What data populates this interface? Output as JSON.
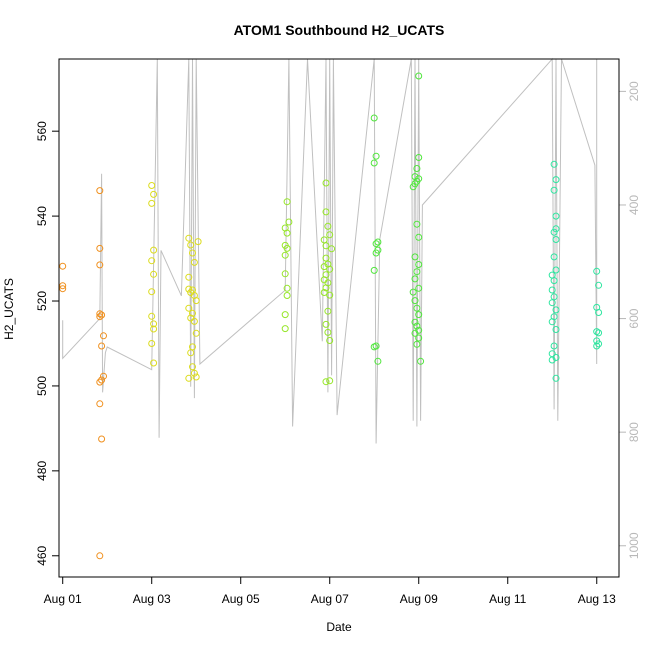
{
  "chart_data": {
    "type": "scatter",
    "title": "ATOM1 Southbound H2_UCATS",
    "xlabel": "Date",
    "ylabel": "H2_UCATS",
    "xlim": [
      "2016-07-31T22:00",
      "2016-08-13T12:00"
    ],
    "ylim": [
      455,
      577
    ],
    "x_ticks": [
      {
        "date": "2016-08-01",
        "label": "Aug 01"
      },
      {
        "date": "2016-08-03",
        "label": "Aug 03"
      },
      {
        "date": "2016-08-05",
        "label": "Aug 05"
      },
      {
        "date": "2016-08-07",
        "label": "Aug 07"
      },
      {
        "date": "2016-08-09",
        "label": "Aug 09"
      },
      {
        "date": "2016-08-11",
        "label": "Aug 11"
      },
      {
        "date": "2016-08-13",
        "label": "Aug 13"
      }
    ],
    "y_ticks": [
      460,
      480,
      500,
      520,
      540,
      560
    ],
    "right_axis": {
      "description": "pressure, inverted",
      "range": [
        1055,
        143
      ],
      "ticks": [
        200,
        400,
        600,
        800,
        1000
      ],
      "color": "#b8b8b8"
    },
    "profile_line": {
      "color": "#c0c0c0",
      "points": [
        [
          "2016-08-01T00:00",
          603
        ],
        [
          "2016-08-01T00:00",
          670
        ],
        [
          "2016-08-01T20:00",
          600
        ],
        [
          "2016-08-01T21:00",
          345
        ],
        [
          "2016-08-01T21:30",
          730
        ],
        [
          "2016-08-01T23:00",
          660
        ],
        [
          "2016-08-02T00:00",
          650
        ],
        [
          "2016-08-03T00:00",
          690
        ],
        [
          "2016-08-03T03:00",
          130
        ],
        [
          "2016-08-03T04:00",
          810
        ],
        [
          "2016-08-03T05:00",
          480
        ],
        [
          "2016-08-03T16:00",
          560
        ],
        [
          "2016-08-03T20:00",
          130
        ],
        [
          "2016-08-03T21:00",
          720
        ],
        [
          "2016-08-03T22:00",
          130
        ],
        [
          "2016-08-03T23:00",
          740
        ],
        [
          "2016-08-04T00:00",
          130
        ],
        [
          "2016-08-04T02:00",
          680
        ],
        [
          "2016-08-06T00:00",
          550
        ],
        [
          "2016-08-06T02:00",
          130
        ],
        [
          "2016-08-06T04:00",
          790
        ],
        [
          "2016-08-06T12:00",
          130
        ],
        [
          "2016-08-06T20:00",
          640
        ],
        [
          "2016-08-06T22:00",
          130
        ],
        [
          "2016-08-06T23:00",
          730
        ],
        [
          "2016-08-07T00:00",
          130
        ],
        [
          "2016-08-07T01:00",
          700
        ],
        [
          "2016-08-07T02:00",
          130
        ],
        [
          "2016-08-07T04:00",
          770
        ],
        [
          "2016-08-08T00:00",
          130
        ],
        [
          "2016-08-08T01:00",
          820
        ],
        [
          "2016-08-08T03:00",
          460
        ],
        [
          "2016-08-08T20:00",
          130
        ],
        [
          "2016-08-08T21:00",
          780
        ],
        [
          "2016-08-08T22:00",
          130
        ],
        [
          "2016-08-08T23:00",
          790
        ],
        [
          "2016-08-09T00:00",
          130
        ],
        [
          "2016-08-09T01:00",
          780
        ],
        [
          "2016-08-09T02:00",
          400
        ],
        [
          "2016-08-12T00:00",
          130
        ],
        [
          "2016-08-12T01:00",
          760
        ],
        [
          "2016-08-12T02:00",
          130
        ],
        [
          "2016-08-12T03:00",
          780
        ],
        [
          "2016-08-12T05:00",
          130
        ],
        [
          "2016-08-12T23:00",
          330
        ],
        [
          "2016-08-13T00:00",
          680
        ],
        [
          "2016-08-13T00:00",
          130
        ]
      ]
    },
    "series": [
      {
        "color": "#f0901e",
        "points": [
          [
            "2016-08-01T00:00",
            528.2
          ],
          [
            "2016-08-01T00:00",
            523.6
          ],
          [
            "2016-08-01T00:00",
            522.9
          ],
          [
            "2016-08-01T20:00",
            546.0
          ],
          [
            "2016-08-01T20:00",
            532.4
          ],
          [
            "2016-08-01T20:00",
            528.5
          ],
          [
            "2016-08-01T20:00",
            517.0
          ],
          [
            "2016-08-01T20:00",
            516.3
          ],
          [
            "2016-08-01T21:00",
            516.7
          ],
          [
            "2016-08-01T21:00",
            509.4
          ],
          [
            "2016-08-01T22:00",
            511.8
          ],
          [
            "2016-08-01T22:00",
            502.3
          ],
          [
            "2016-08-01T20:00",
            500.9
          ],
          [
            "2016-08-01T21:00",
            501.4
          ],
          [
            "2016-08-01T20:00",
            495.8
          ],
          [
            "2016-08-01T21:00",
            487.5
          ],
          [
            "2016-08-01T20:00",
            460.0
          ]
        ]
      },
      {
        "color": "#dcdc1e",
        "points": [
          [
            "2016-08-03T00:00",
            547.2
          ],
          [
            "2016-08-03T01:00",
            545.1
          ],
          [
            "2016-08-03T00:00",
            543.0
          ],
          [
            "2016-08-03T01:00",
            532.0
          ],
          [
            "2016-08-03T00:00",
            529.5
          ],
          [
            "2016-08-03T01:00",
            526.3
          ],
          [
            "2016-08-03T00:00",
            522.2
          ],
          [
            "2016-08-03T00:00",
            516.4
          ],
          [
            "2016-08-03T01:00",
            514.6
          ],
          [
            "2016-08-03T01:00",
            513.4
          ],
          [
            "2016-08-03T00:00",
            510.0
          ],
          [
            "2016-08-03T01:00",
            505.4
          ],
          [
            "2016-08-03T20:00",
            534.8
          ],
          [
            "2016-08-03T21:00",
            533.2
          ],
          [
            "2016-08-03T22:00",
            531.3
          ],
          [
            "2016-08-03T23:00",
            529.1
          ],
          [
            "2016-08-03T20:00",
            525.6
          ],
          [
            "2016-08-03T22:00",
            522.6
          ],
          [
            "2016-08-03T21:00",
            522.0
          ],
          [
            "2016-08-03T23:00",
            521.3
          ],
          [
            "2016-08-04T00:00",
            520.1
          ],
          [
            "2016-08-03T20:00",
            518.3
          ],
          [
            "2016-08-03T22:00",
            517.1
          ],
          [
            "2016-08-03T21:00",
            516.0
          ],
          [
            "2016-08-03T23:00",
            515.2
          ],
          [
            "2016-08-04T00:00",
            512.4
          ],
          [
            "2016-08-03T22:00",
            509.2
          ],
          [
            "2016-08-03T21:00",
            507.8
          ],
          [
            "2016-08-03T22:00",
            504.5
          ],
          [
            "2016-08-03T23:00",
            503.0
          ],
          [
            "2016-08-04T00:00",
            502.1
          ],
          [
            "2016-08-03T20:00",
            501.8
          ],
          [
            "2016-08-03T20:00",
            522.8
          ],
          [
            "2016-08-04T01:00",
            534.0
          ]
        ]
      },
      {
        "color": "#96e628",
        "points": [
          [
            "2016-08-06T01:00",
            543.4
          ],
          [
            "2016-08-06T02:00",
            538.6
          ],
          [
            "2016-08-06T00:00",
            537.2
          ],
          [
            "2016-08-06T01:00",
            536.0
          ],
          [
            "2016-08-06T00:00",
            533.1
          ],
          [
            "2016-08-06T01:00",
            532.4
          ],
          [
            "2016-08-06T00:00",
            530.8
          ],
          [
            "2016-08-06T00:00",
            526.4
          ],
          [
            "2016-08-06T01:00",
            523.0
          ],
          [
            "2016-08-06T01:00",
            521.3
          ],
          [
            "2016-08-06T00:00",
            516.8
          ],
          [
            "2016-08-06T00:00",
            513.5
          ],
          [
            "2016-08-06T22:00",
            547.8
          ],
          [
            "2016-08-06T22:00",
            541.0
          ],
          [
            "2016-08-06T23:00",
            537.6
          ],
          [
            "2016-08-07T00:00",
            535.6
          ],
          [
            "2016-08-06T21:00",
            534.4
          ],
          [
            "2016-08-06T22:00",
            533.0
          ],
          [
            "2016-08-07T01:00",
            532.3
          ],
          [
            "2016-08-06T22:00",
            530.1
          ],
          [
            "2016-08-06T23:00",
            528.7
          ],
          [
            "2016-08-06T21:00",
            528.1
          ],
          [
            "2016-08-07T00:00",
            527.5
          ],
          [
            "2016-08-06T22:00",
            526.2
          ],
          [
            "2016-08-06T23:00",
            524.3
          ],
          [
            "2016-08-06T22:00",
            523.1
          ],
          [
            "2016-08-06T21:00",
            522.0
          ],
          [
            "2016-08-07T00:00",
            521.4
          ],
          [
            "2016-08-06T23:00",
            517.6
          ],
          [
            "2016-08-06T22:00",
            514.5
          ],
          [
            "2016-08-06T23:00",
            512.6
          ],
          [
            "2016-08-07T00:00",
            510.7
          ],
          [
            "2016-08-06T22:00",
            501.0
          ],
          [
            "2016-08-07T00:00",
            501.2
          ],
          [
            "2016-08-06T21:00",
            525.0
          ]
        ]
      },
      {
        "color": "#50e63c",
        "points": [
          [
            "2016-08-08T00:00",
            563.1
          ],
          [
            "2016-08-08T01:00",
            554.1
          ],
          [
            "2016-08-08T00:00",
            552.5
          ],
          [
            "2016-08-08T02:00",
            533.9
          ],
          [
            "2016-08-08T01:00",
            533.5
          ],
          [
            "2016-08-08T02:00",
            532.0
          ],
          [
            "2016-08-08T01:00",
            531.3
          ],
          [
            "2016-08-08T00:00",
            527.2
          ],
          [
            "2016-08-08T00:00",
            509.2
          ],
          [
            "2016-08-08T01:00",
            509.4
          ],
          [
            "2016-08-08T02:00",
            505.8
          ],
          [
            "2016-08-09T00:00",
            573.0
          ],
          [
            "2016-08-09T00:00",
            553.8
          ],
          [
            "2016-08-08T23:00",
            551.2
          ],
          [
            "2016-08-08T22:00",
            549.3
          ],
          [
            "2016-08-09T00:00",
            548.8
          ],
          [
            "2016-08-08T23:00",
            548.2
          ],
          [
            "2016-08-08T22:00",
            547.6
          ],
          [
            "2016-08-08T21:00",
            546.9
          ],
          [
            "2016-08-08T23:00",
            538.1
          ],
          [
            "2016-08-09T00:00",
            535.0
          ],
          [
            "2016-08-08T22:00",
            530.4
          ],
          [
            "2016-08-09T00:00",
            528.6
          ],
          [
            "2016-08-08T23:00",
            526.9
          ],
          [
            "2016-08-08T22:00",
            525.2
          ],
          [
            "2016-08-09T00:00",
            523.0
          ],
          [
            "2016-08-08T21:00",
            522.1
          ],
          [
            "2016-08-08T22:00",
            520.1
          ],
          [
            "2016-08-08T23:00",
            518.3
          ],
          [
            "2016-08-09T00:00",
            516.8
          ],
          [
            "2016-08-08T22:00",
            515.0
          ],
          [
            "2016-08-08T23:00",
            514.1
          ],
          [
            "2016-08-09T00:00",
            513.1
          ],
          [
            "2016-08-08T22:00",
            512.4
          ],
          [
            "2016-08-09T00:00",
            511.3
          ],
          [
            "2016-08-08T23:00",
            509.8
          ],
          [
            "2016-08-09T01:00",
            505.8
          ]
        ]
      },
      {
        "color": "#2ee6a0",
        "points": [
          [
            "2016-08-12T01:00",
            552.2
          ],
          [
            "2016-08-12T02:00",
            548.6
          ],
          [
            "2016-08-12T01:00",
            546.1
          ],
          [
            "2016-08-12T02:00",
            540.0
          ],
          [
            "2016-08-12T02:00",
            537.0
          ],
          [
            "2016-08-12T01:00",
            536.2
          ],
          [
            "2016-08-12T02:00",
            534.5
          ],
          [
            "2016-08-12T01:00",
            530.4
          ],
          [
            "2016-08-12T02:00",
            527.3
          ],
          [
            "2016-08-12T00:00",
            526.1
          ],
          [
            "2016-08-12T01:00",
            524.8
          ],
          [
            "2016-08-12T00:00",
            522.6
          ],
          [
            "2016-08-12T01:00",
            521.0
          ],
          [
            "2016-08-12T00:00",
            519.6
          ],
          [
            "2016-08-12T02:00",
            517.9
          ],
          [
            "2016-08-12T01:00",
            516.3
          ],
          [
            "2016-08-12T00:00",
            515.1
          ],
          [
            "2016-08-12T02:00",
            513.3
          ],
          [
            "2016-08-12T01:00",
            509.4
          ],
          [
            "2016-08-12T00:00",
            507.6
          ],
          [
            "2016-08-12T02:00",
            506.7
          ],
          [
            "2016-08-12T00:00",
            506.1
          ],
          [
            "2016-08-12T02:00",
            501.8
          ],
          [
            "2016-08-13T00:00",
            527.0
          ],
          [
            "2016-08-13T01:00",
            523.7
          ],
          [
            "2016-08-13T00:00",
            518.5
          ],
          [
            "2016-08-13T01:00",
            517.3
          ],
          [
            "2016-08-13T00:00",
            512.8
          ],
          [
            "2016-08-13T01:00",
            512.5
          ],
          [
            "2016-08-13T00:00",
            510.6
          ],
          [
            "2016-08-13T01:00",
            509.9
          ],
          [
            "2016-08-13T00:00",
            509.4
          ]
        ]
      }
    ]
  }
}
